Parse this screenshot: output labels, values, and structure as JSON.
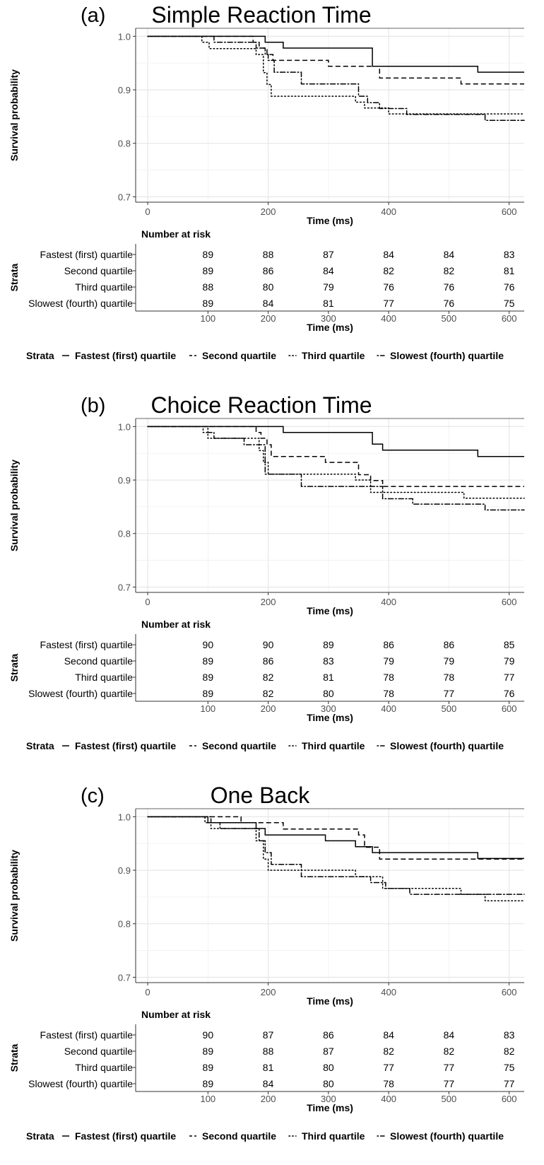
{
  "chart_data": [
    {
      "type": "line",
      "panel_label": "(a)",
      "title": "Simple Reaction Time",
      "xlabel": "Time (ms)",
      "ylabel": "Survival probability",
      "xlim": [
        -20,
        625
      ],
      "ylim": [
        0.69,
        1.015
      ],
      "x_ticks": [
        0,
        200,
        400,
        600
      ],
      "y_ticks": [
        0.7,
        0.8,
        0.9,
        1.0
      ],
      "y_tick_labels": [
        "0.7",
        "0.8",
        "0.9",
        "1.0"
      ],
      "grid": true,
      "series": [
        {
          "name": "Fastest (first) quartile",
          "line_style": "solid",
          "x": [
            0,
            195,
            225,
            373,
            548,
            625
          ],
          "y": [
            1.0,
            0.989,
            0.978,
            0.944,
            0.933,
            0.933
          ]
        },
        {
          "name": "Second quartile",
          "line_style": "dashed",
          "x": [
            0,
            175,
            185,
            198,
            208,
            300,
            385,
            520,
            625
          ],
          "y": [
            1.0,
            0.989,
            0.978,
            0.966,
            0.955,
            0.944,
            0.922,
            0.911,
            0.911
          ]
        },
        {
          "name": "Third quartile",
          "line_style": "dotted",
          "x": [
            0,
            90,
            102,
            180,
            192,
            198,
            205,
            345,
            360,
            400,
            625
          ],
          "y": [
            1.0,
            0.989,
            0.977,
            0.966,
            0.932,
            0.91,
            0.888,
            0.877,
            0.866,
            0.855,
            0.855
          ]
        },
        {
          "name": "Slowest (fourth) quartile",
          "line_style": "dotdash",
          "x": [
            0,
            110,
            180,
            195,
            200,
            210,
            255,
            350,
            365,
            385,
            430,
            560,
            625
          ],
          "y": [
            1.0,
            0.989,
            0.978,
            0.966,
            0.955,
            0.933,
            0.911,
            0.888,
            0.876,
            0.865,
            0.854,
            0.843,
            0.843
          ]
        }
      ],
      "risk_table": {
        "title": "Number at risk",
        "y_label": "Strata",
        "x_label": "Time (ms)",
        "times": [
          100,
          200,
          300,
          400,
          500,
          600
        ],
        "rows": [
          {
            "label": "Fastest (first) quartile",
            "values": [
              "89",
              "88",
              "87",
              "84",
              "84",
              "83"
            ]
          },
          {
            "label": "Second quartile",
            "values": [
              "89",
              "86",
              "84",
              "82",
              "82",
              "81"
            ]
          },
          {
            "label": "Third quartile",
            "values": [
              "88",
              "80",
              "79",
              "76",
              "76",
              "76"
            ]
          },
          {
            "label": "Slowest (fourth) quartile",
            "values": [
              "89",
              "84",
              "81",
              "77",
              "76",
              "75"
            ]
          }
        ]
      },
      "legend": {
        "title": "Strata",
        "position": "bottom",
        "items": [
          {
            "label": "Fastest (first) quartile",
            "line_style": "solid"
          },
          {
            "label": "Second quartile",
            "line_style": "dashed"
          },
          {
            "label": "Third quartile",
            "line_style": "dotted"
          },
          {
            "label": "Slowest (fourth) quartile",
            "line_style": "dotdash"
          }
        ]
      }
    },
    {
      "type": "line",
      "panel_label": "(b)",
      "title": "Choice Reaction Time",
      "xlabel": "Time (ms)",
      "ylabel": "Survival probability",
      "xlim": [
        -20,
        625
      ],
      "ylim": [
        0.69,
        1.015
      ],
      "x_ticks": [
        0,
        200,
        400,
        600
      ],
      "y_ticks": [
        0.7,
        0.8,
        0.9,
        1.0
      ],
      "y_tick_labels": [
        "0.7",
        "0.8",
        "0.9",
        "1.0"
      ],
      "grid": true,
      "series": [
        {
          "name": "Fastest (first) quartile",
          "line_style": "solid",
          "x": [
            0,
            225,
            373,
            390,
            548,
            625
          ],
          "y": [
            1.0,
            0.989,
            0.967,
            0.956,
            0.944,
            0.944
          ]
        },
        {
          "name": "Second quartile",
          "line_style": "dashed",
          "x": [
            0,
            180,
            188,
            198,
            205,
            295,
            350,
            370,
            390,
            625
          ],
          "y": [
            1.0,
            0.989,
            0.978,
            0.966,
            0.944,
            0.933,
            0.91,
            0.899,
            0.888,
            0.888
          ]
        },
        {
          "name": "Third quartile",
          "line_style": "dotted",
          "x": [
            0,
            92,
            100,
            185,
            192,
            200,
            345,
            370,
            525,
            625
          ],
          "y": [
            1.0,
            0.989,
            0.978,
            0.955,
            0.933,
            0.911,
            0.9,
            0.877,
            0.866,
            0.866
          ]
        },
        {
          "name": "Slowest (fourth) quartile",
          "line_style": "dotdash",
          "x": [
            0,
            100,
            110,
            160,
            195,
            255,
            390,
            440,
            560,
            625
          ],
          "y": [
            1.0,
            0.989,
            0.978,
            0.966,
            0.911,
            0.888,
            0.865,
            0.855,
            0.844,
            0.844
          ]
        }
      ],
      "risk_table": {
        "title": "Number at risk",
        "y_label": "Strata",
        "x_label": "Time (ms)",
        "times": [
          100,
          200,
          300,
          400,
          500,
          600
        ],
        "rows": [
          {
            "label": "Fastest (first) quartile",
            "values": [
              "90",
              "90",
              "89",
              "86",
              "86",
              "85"
            ]
          },
          {
            "label": "Second quartile",
            "values": [
              "89",
              "86",
              "83",
              "79",
              "79",
              "79"
            ]
          },
          {
            "label": "Third quartile",
            "values": [
              "89",
              "82",
              "81",
              "78",
              "78",
              "77"
            ]
          },
          {
            "label": "Slowest (fourth) quartile",
            "values": [
              "89",
              "82",
              "80",
              "78",
              "77",
              "76"
            ]
          }
        ]
      },
      "legend": {
        "title": "Strata",
        "position": "bottom",
        "items": [
          {
            "label": "Fastest (first) quartile",
            "line_style": "solid"
          },
          {
            "label": "Second quartile",
            "line_style": "dashed"
          },
          {
            "label": "Third quartile",
            "line_style": "dotted"
          },
          {
            "label": "Slowest (fourth) quartile",
            "line_style": "dotdash"
          }
        ]
      }
    },
    {
      "type": "line",
      "panel_label": "(c)",
      "title": "One Back",
      "xlabel": "Time (ms)",
      "ylabel": "Survival probability",
      "xlim": [
        -20,
        625
      ],
      "ylim": [
        0.69,
        1.015
      ],
      "x_ticks": [
        0,
        200,
        400,
        600
      ],
      "y_ticks": [
        0.7,
        0.8,
        0.9,
        1.0
      ],
      "y_tick_labels": [
        "0.7",
        "0.8",
        "0.9",
        "1.0"
      ],
      "grid": true,
      "series": [
        {
          "name": "Fastest (first) quartile",
          "line_style": "solid",
          "x": [
            0,
            100,
            180,
            195,
            295,
            345,
            373,
            548,
            625
          ],
          "y": [
            1.0,
            0.989,
            0.978,
            0.966,
            0.955,
            0.944,
            0.933,
            0.922,
            0.922
          ]
        },
        {
          "name": "Second quartile",
          "line_style": "dashed",
          "x": [
            0,
            155,
            195,
            225,
            350,
            360,
            385,
            625
          ],
          "y": [
            1.0,
            0.989,
            0.989,
            0.977,
            0.966,
            0.943,
            0.921,
            0.921
          ]
        },
        {
          "name": "Third quartile",
          "line_style": "dotted",
          "x": [
            0,
            95,
            105,
            180,
            192,
            200,
            345,
            390,
            520,
            560,
            625
          ],
          "y": [
            1.0,
            0.989,
            0.978,
            0.955,
            0.921,
            0.9,
            0.888,
            0.866,
            0.855,
            0.843,
            0.843
          ]
        },
        {
          "name": "Slowest (fourth) quartile",
          "line_style": "dotdash",
          "x": [
            0,
            105,
            120,
            185,
            195,
            205,
            255,
            370,
            395,
            435,
            560,
            625
          ],
          "y": [
            1.0,
            0.989,
            0.978,
            0.955,
            0.933,
            0.911,
            0.888,
            0.877,
            0.866,
            0.855,
            0.855,
            0.855
          ]
        }
      ],
      "risk_table": {
        "title": "Number at risk",
        "y_label": "Strata",
        "x_label": "Time (ms)",
        "times": [
          100,
          200,
          300,
          400,
          500,
          600
        ],
        "rows": [
          {
            "label": "Fastest (first) quartile",
            "values": [
              "90",
              "87",
              "86",
              "84",
              "84",
              "83"
            ]
          },
          {
            "label": "Second quartile",
            "values": [
              "89",
              "88",
              "87",
              "82",
              "82",
              "82"
            ]
          },
          {
            "label": "Third quartile",
            "values": [
              "89",
              "81",
              "80",
              "77",
              "77",
              "75"
            ]
          },
          {
            "label": "Slowest (fourth) quartile",
            "values": [
              "89",
              "84",
              "80",
              "78",
              "77",
              "77"
            ]
          }
        ]
      },
      "legend": {
        "title": "Strata",
        "position": "bottom",
        "items": [
          {
            "label": "Fastest (first) quartile",
            "line_style": "solid"
          },
          {
            "label": "Second quartile",
            "line_style": "dashed"
          },
          {
            "label": "Third quartile",
            "line_style": "dotted"
          },
          {
            "label": "Slowest (fourth) quartile",
            "line_style": "dotdash"
          }
        ]
      }
    }
  ]
}
